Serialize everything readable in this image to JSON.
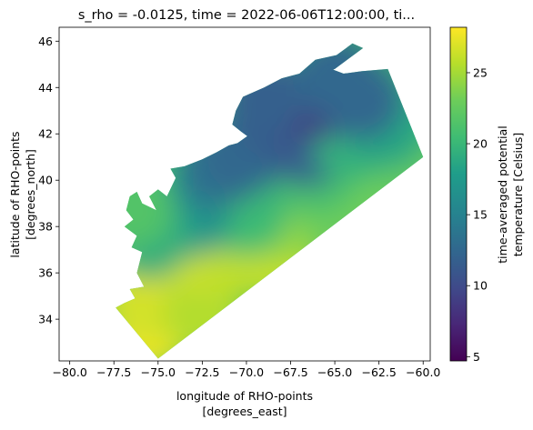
{
  "chart_data": {
    "type": "heatmap",
    "title": "s_rho = -0.0125, time = 2022-06-06T12:00:00, ti...",
    "xlabel": [
      "longitude of RHO-points",
      "[degrees_east]"
    ],
    "ylabel": [
      "latitude of RHO-points",
      "[degrees_north]"
    ],
    "colorbar_label": [
      "time-averaged potential",
      "temperature [Celsius]"
    ],
    "colormap": "viridis",
    "xlim": [
      -80.6,
      -59.6
    ],
    "ylim": [
      32.2,
      46.6
    ],
    "clim": [
      4.7,
      28.2
    ],
    "x_ticks": [
      -80.0,
      -77.5,
      -75.0,
      -72.5,
      -70.0,
      -67.5,
      -65.0,
      -62.5,
      -60.0
    ],
    "x_tick_labels": [
      "−80.0",
      "−77.5",
      "−75.0",
      "−72.5",
      "−70.0",
      "−67.5",
      "−65.0",
      "−62.5",
      "−60.0"
    ],
    "y_ticks": [
      34,
      36,
      38,
      40,
      42,
      44,
      46
    ],
    "y_tick_labels": [
      "34",
      "36",
      "38",
      "40",
      "42",
      "44",
      "46"
    ],
    "colorbar_ticks": [
      5,
      10,
      15,
      20,
      25
    ],
    "colorbar_tick_labels": [
      "5",
      "10",
      "15",
      "20",
      "25"
    ],
    "domain_outline": [
      [
        -77.4,
        34.5
      ],
      [
        -76.9,
        34.7
      ],
      [
        -76.3,
        34.9
      ],
      [
        -76.6,
        35.3
      ],
      [
        -75.8,
        35.4
      ],
      [
        -76.2,
        36.0
      ],
      [
        -75.9,
        36.9
      ],
      [
        -76.5,
        37.1
      ],
      [
        -76.2,
        37.6
      ],
      [
        -76.9,
        38.0
      ],
      [
        -76.4,
        38.3
      ],
      [
        -76.8,
        38.7
      ],
      [
        -76.6,
        39.3
      ],
      [
        -76.2,
        39.5
      ],
      [
        -75.9,
        39.0
      ],
      [
        -75.1,
        38.7
      ],
      [
        -75.5,
        39.3
      ],
      [
        -75.0,
        39.6
      ],
      [
        -74.5,
        39.3
      ],
      [
        -74.0,
        40.1
      ],
      [
        -74.3,
        40.5
      ],
      [
        -73.5,
        40.6
      ],
      [
        -72.5,
        40.9
      ],
      [
        -71.7,
        41.2
      ],
      [
        -71.0,
        41.5
      ],
      [
        -70.5,
        41.6
      ],
      [
        -69.95,
        41.9
      ],
      [
        -70.3,
        42.1
      ],
      [
        -70.8,
        42.4
      ],
      [
        -70.6,
        43.0
      ],
      [
        -70.2,
        43.6
      ],
      [
        -69.0,
        44.0
      ],
      [
        -68.0,
        44.4
      ],
      [
        -67.0,
        44.6
      ],
      [
        -66.1,
        45.2
      ],
      [
        -64.9,
        45.4
      ],
      [
        -64.0,
        45.9
      ],
      [
        -63.4,
        45.7
      ],
      [
        -64.3,
        45.2
      ],
      [
        -65.0,
        44.8
      ],
      [
        -65.7,
        44.6
      ],
      [
        -65.2,
        44.8
      ],
      [
        -64.5,
        44.6
      ],
      [
        -63.5,
        44.7
      ],
      [
        -62.0,
        44.8
      ],
      [
        -60.0,
        41.0
      ],
      [
        -75.0,
        32.3
      ]
    ],
    "temperature_field": [
      {
        "lon": -75.5,
        "lat": 33.5,
        "value": 27.5
      },
      {
        "lon": -76.0,
        "lat": 35.0,
        "value": 26.5
      },
      {
        "lon": -74.0,
        "lat": 35.5,
        "value": 27.0
      },
      {
        "lon": -72.5,
        "lat": 34.3,
        "value": 25.5
      },
      {
        "lon": -72.5,
        "lat": 37.0,
        "value": 26.5
      },
      {
        "lon": -70.5,
        "lat": 36.8,
        "value": 26.0
      },
      {
        "lon": -68.3,
        "lat": 36.5,
        "value": 26.0
      },
      {
        "lon": -67.5,
        "lat": 38.3,
        "value": 24.5
      },
      {
        "lon": -65.0,
        "lat": 38.8,
        "value": 23.0
      },
      {
        "lon": -63.0,
        "lat": 39.8,
        "value": 23.0
      },
      {
        "lon": -61.0,
        "lat": 40.8,
        "value": 22.5
      },
      {
        "lon": -70.0,
        "lat": 38.5,
        "value": 20.5
      },
      {
        "lon": -73.0,
        "lat": 38.5,
        "value": 17.5
      },
      {
        "lon": -72.0,
        "lat": 39.7,
        "value": 16.5
      },
      {
        "lon": -69.5,
        "lat": 39.7,
        "value": 20.0
      },
      {
        "lon": -66.0,
        "lat": 40.3,
        "value": 21.0
      },
      {
        "lon": -75.5,
        "lat": 37.5,
        "value": 19.0
      },
      {
        "lon": -76.5,
        "lat": 38.8,
        "value": 21.5
      },
      {
        "lon": -71.5,
        "lat": 40.6,
        "value": 13.5
      },
      {
        "lon": -70.0,
        "lat": 41.2,
        "value": 12.5
      },
      {
        "lon": -66.5,
        "lat": 41.5,
        "value": 12.0
      },
      {
        "lon": -64.0,
        "lat": 41.8,
        "value": 19.5
      },
      {
        "lon": -62.0,
        "lat": 42.3,
        "value": 18.5
      },
      {
        "lon": -68.0,
        "lat": 42.8,
        "value": 11.0
      },
      {
        "lon": -66.0,
        "lat": 43.5,
        "value": 9.0
      },
      {
        "lon": -63.5,
        "lat": 43.5,
        "value": 12.5
      },
      {
        "lon": -69.0,
        "lat": 43.6,
        "value": 12.0
      },
      {
        "lon": -65.0,
        "lat": 44.5,
        "value": 12.5
      }
    ]
  }
}
